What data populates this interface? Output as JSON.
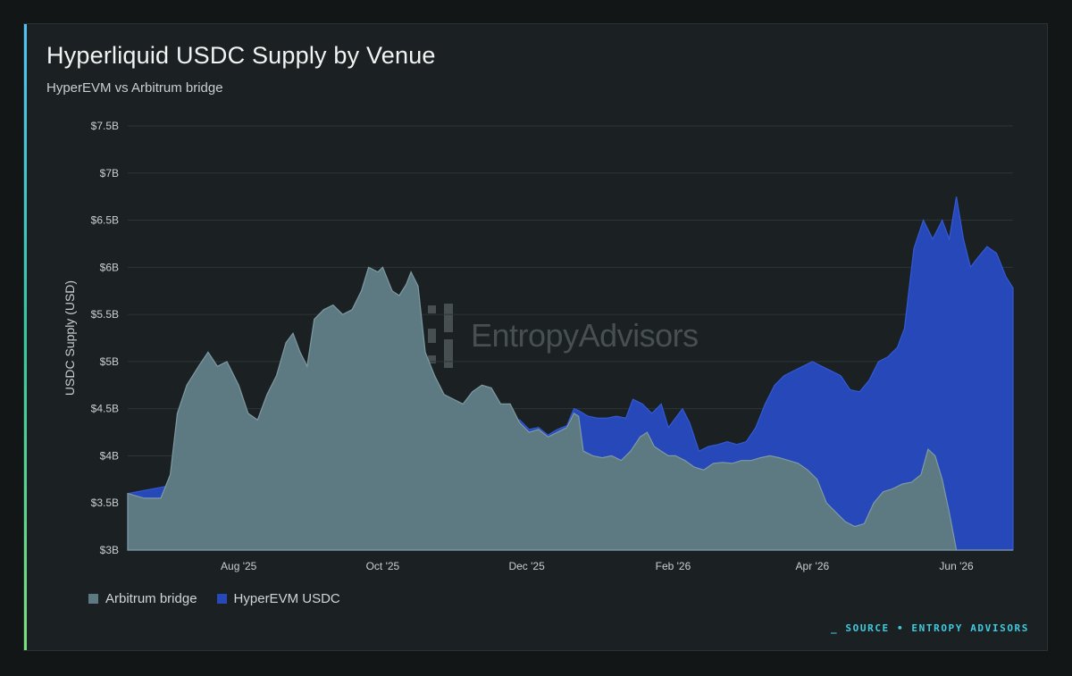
{
  "chart_data": {
    "type": "area",
    "stacked": true,
    "title": "Hyperliquid USDC Supply by Venue",
    "subtitle": "HyperEVM vs Arbitrum bridge",
    "ylabel": "USDC Supply (USD)",
    "xlabel": "",
    "ylim": [
      3.0,
      7.5
    ],
    "y_unit": "$B",
    "y_ticks": [
      "$3B",
      "$3.5B",
      "$4B",
      "$4.5B",
      "$5B",
      "$5.5B",
      "$6B",
      "$6.5B",
      "$7B",
      "$7.5B"
    ],
    "x_range": [
      "2025-06-15",
      "2026-06-25"
    ],
    "x_ticks": [
      {
        "label": "Aug '25",
        "date": "2025-08-01"
      },
      {
        "label": "Oct '25",
        "date": "2025-10-01"
      },
      {
        "label": "Dec '25",
        "date": "2025-12-01"
      },
      {
        "label": "Feb '26",
        "date": "2026-02-01"
      },
      {
        "label": "Apr '26",
        "date": "2026-04-01"
      },
      {
        "label": "Jun '26",
        "date": "2026-06-01"
      }
    ],
    "grid": true,
    "legend_position": "bottom-left",
    "series": [
      {
        "name": "Arbitrum bridge",
        "color": "#5d7a83",
        "points": [
          [
            "2025-06-15",
            3.6
          ],
          [
            "2025-06-22",
            3.55
          ],
          [
            "2025-06-29",
            3.55
          ],
          [
            "2025-07-03",
            3.8
          ],
          [
            "2025-07-06",
            4.45
          ],
          [
            "2025-07-10",
            4.75
          ],
          [
            "2025-07-15",
            4.95
          ],
          [
            "2025-07-19",
            5.1
          ],
          [
            "2025-07-23",
            4.95
          ],
          [
            "2025-07-27",
            5.0
          ],
          [
            "2025-08-01",
            4.75
          ],
          [
            "2025-08-05",
            4.45
          ],
          [
            "2025-08-09",
            4.38
          ],
          [
            "2025-08-13",
            4.65
          ],
          [
            "2025-08-17",
            4.85
          ],
          [
            "2025-08-21",
            5.2
          ],
          [
            "2025-08-24",
            5.3
          ],
          [
            "2025-08-27",
            5.1
          ],
          [
            "2025-08-30",
            4.95
          ],
          [
            "2025-09-02",
            5.45
          ],
          [
            "2025-09-06",
            5.55
          ],
          [
            "2025-09-10",
            5.6
          ],
          [
            "2025-09-14",
            5.5
          ],
          [
            "2025-09-18",
            5.55
          ],
          [
            "2025-09-22",
            5.75
          ],
          [
            "2025-09-25",
            6.0
          ],
          [
            "2025-09-29",
            5.95
          ],
          [
            "2025-10-01",
            6.0
          ],
          [
            "2025-10-05",
            5.75
          ],
          [
            "2025-10-08",
            5.7
          ],
          [
            "2025-10-11",
            5.82
          ],
          [
            "2025-10-13",
            5.95
          ],
          [
            "2025-10-16",
            5.8
          ],
          [
            "2025-10-19",
            5.1
          ],
          [
            "2025-10-23",
            4.85
          ],
          [
            "2025-10-27",
            4.65
          ],
          [
            "2025-10-31",
            4.6
          ],
          [
            "2025-11-04",
            4.55
          ],
          [
            "2025-11-08",
            4.68
          ],
          [
            "2025-11-12",
            4.75
          ],
          [
            "2025-11-16",
            4.72
          ],
          [
            "2025-11-20",
            4.55
          ],
          [
            "2025-11-24",
            4.55
          ],
          [
            "2025-11-28",
            4.35
          ],
          [
            "2025-12-02",
            4.25
          ],
          [
            "2025-12-06",
            4.28
          ],
          [
            "2025-12-10",
            4.2
          ],
          [
            "2025-12-14",
            4.25
          ],
          [
            "2025-12-18",
            4.3
          ],
          [
            "2025-12-21",
            4.45
          ],
          [
            "2025-12-23",
            4.42
          ],
          [
            "2025-12-25",
            4.05
          ],
          [
            "2025-12-29",
            4.0
          ],
          [
            "2026-01-02",
            3.98
          ],
          [
            "2026-01-06",
            4.0
          ],
          [
            "2026-01-10",
            3.95
          ],
          [
            "2026-01-14",
            4.05
          ],
          [
            "2026-01-18",
            4.2
          ],
          [
            "2026-01-21",
            4.25
          ],
          [
            "2026-01-24",
            4.1
          ],
          [
            "2026-01-27",
            4.05
          ],
          [
            "2026-01-30",
            4.0
          ],
          [
            "2026-02-02",
            4.0
          ],
          [
            "2026-02-06",
            3.95
          ],
          [
            "2026-02-10",
            3.88
          ],
          [
            "2026-02-14",
            3.85
          ],
          [
            "2026-02-18",
            3.92
          ],
          [
            "2026-02-22",
            3.93
          ],
          [
            "2026-02-26",
            3.92
          ],
          [
            "2026-03-02",
            3.95
          ],
          [
            "2026-03-06",
            3.95
          ],
          [
            "2026-03-10",
            3.98
          ],
          [
            "2026-03-14",
            4.0
          ],
          [
            "2026-03-18",
            3.98
          ],
          [
            "2026-03-22",
            3.95
          ],
          [
            "2026-03-26",
            3.92
          ],
          [
            "2026-03-30",
            3.85
          ],
          [
            "2026-04-03",
            3.75
          ],
          [
            "2026-04-07",
            3.5
          ],
          [
            "2026-04-11",
            3.4
          ],
          [
            "2026-04-15",
            3.3
          ],
          [
            "2026-04-19",
            3.25
          ],
          [
            "2026-04-23",
            3.28
          ],
          [
            "2026-04-27",
            3.5
          ],
          [
            "2026-05-01",
            3.62
          ],
          [
            "2026-05-05",
            3.65
          ],
          [
            "2026-05-09",
            3.7
          ],
          [
            "2026-05-13",
            3.72
          ],
          [
            "2026-05-17",
            3.8
          ],
          [
            "2026-05-20",
            4.07
          ],
          [
            "2026-05-23",
            4.0
          ],
          [
            "2026-05-26",
            3.75
          ],
          [
            "2026-05-29",
            3.4
          ],
          [
            "2026-06-01",
            3.0
          ],
          [
            "2026-06-25",
            3.0
          ]
        ]
      },
      {
        "name": "HyperEVM USDC",
        "color": "#2648b8",
        "points": [
          [
            "2025-06-15",
            3.6
          ],
          [
            "2025-11-28",
            4.38
          ],
          [
            "2025-12-02",
            4.28
          ],
          [
            "2025-12-06",
            4.3
          ],
          [
            "2025-12-10",
            4.22
          ],
          [
            "2025-12-14",
            4.28
          ],
          [
            "2025-12-18",
            4.32
          ],
          [
            "2025-12-21",
            4.5
          ],
          [
            "2025-12-23",
            4.48
          ],
          [
            "2025-12-27",
            4.42
          ],
          [
            "2025-12-31",
            4.4
          ],
          [
            "2026-01-04",
            4.4
          ],
          [
            "2026-01-08",
            4.42
          ],
          [
            "2026-01-12",
            4.4
          ],
          [
            "2026-01-15",
            4.6
          ],
          [
            "2026-01-19",
            4.55
          ],
          [
            "2026-01-23",
            4.45
          ],
          [
            "2026-01-27",
            4.55
          ],
          [
            "2026-01-30",
            4.3
          ],
          [
            "2026-02-02",
            4.4
          ],
          [
            "2026-02-05",
            4.5
          ],
          [
            "2026-02-08",
            4.35
          ],
          [
            "2026-02-12",
            4.05
          ],
          [
            "2026-02-16",
            4.1
          ],
          [
            "2026-02-20",
            4.12
          ],
          [
            "2026-02-24",
            4.15
          ],
          [
            "2026-02-28",
            4.12
          ],
          [
            "2026-03-04",
            4.15
          ],
          [
            "2026-03-08",
            4.3
          ],
          [
            "2026-03-12",
            4.55
          ],
          [
            "2026-03-16",
            4.75
          ],
          [
            "2026-03-20",
            4.85
          ],
          [
            "2026-03-24",
            4.9
          ],
          [
            "2026-03-28",
            4.95
          ],
          [
            "2026-04-01",
            5.0
          ],
          [
            "2026-04-05",
            4.95
          ],
          [
            "2026-04-09",
            4.9
          ],
          [
            "2026-04-13",
            4.85
          ],
          [
            "2026-04-17",
            4.7
          ],
          [
            "2026-04-21",
            4.68
          ],
          [
            "2026-04-25",
            4.8
          ],
          [
            "2026-04-29",
            5.0
          ],
          [
            "2026-05-03",
            5.05
          ],
          [
            "2026-05-07",
            5.15
          ],
          [
            "2026-05-10",
            5.35
          ],
          [
            "2026-05-14",
            6.2
          ],
          [
            "2026-05-18",
            6.5
          ],
          [
            "2026-05-22",
            6.3
          ],
          [
            "2026-05-26",
            6.5
          ],
          [
            "2026-05-29",
            6.3
          ],
          [
            "2026-06-01",
            6.75
          ],
          [
            "2026-06-04",
            6.3
          ],
          [
            "2026-06-07",
            6.0
          ],
          [
            "2026-06-10",
            6.1
          ],
          [
            "2026-06-14",
            6.22
          ],
          [
            "2026-06-18",
            6.15
          ],
          [
            "2026-06-22",
            5.9
          ],
          [
            "2026-06-25",
            5.78
          ]
        ]
      }
    ]
  },
  "legend": [
    {
      "label": "Arbitrum bridge",
      "color": "#5d7a83"
    },
    {
      "label": "HyperEVM USDC",
      "color": "#2648b8"
    }
  ],
  "watermark": {
    "text": "EntropyAdvisors"
  },
  "footer": {
    "source": "_ SOURCE • ENTROPY ADVISORS"
  }
}
